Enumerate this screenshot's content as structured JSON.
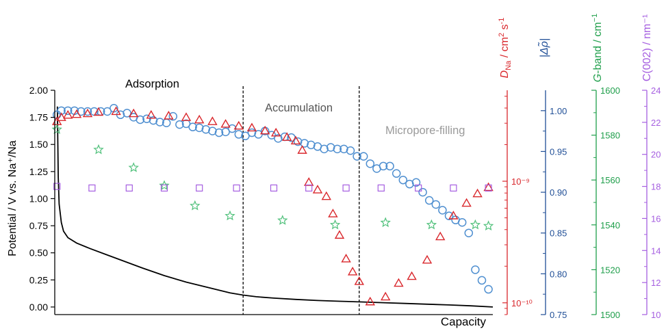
{
  "chart_data": {
    "type": "scatter",
    "title": "",
    "xlabel": "Capacity",
    "ylabel": "Potential / V vs. Na⁺/Na",
    "xlim": [
      0,
      100
    ],
    "ylim": [
      -0.07,
      2.0
    ],
    "left_axis": {
      "ticks": [
        0.0,
        0.25,
        0.5,
        0.75,
        1.0,
        1.25,
        1.5,
        1.75,
        2.0
      ],
      "tick_labels": [
        "0.00",
        "0.25",
        "0.50",
        "0.75",
        "1.00",
        "1.25",
        "1.50",
        "1.75",
        "2.00"
      ]
    },
    "right_axes": [
      {
        "id": "dna",
        "label_main": "D",
        "label_sub": "Na",
        "label_rest": " / cm",
        "label_sup1": "2",
        "label_rest2": " s",
        "label_sup2": "-1",
        "color": "#d9262b",
        "scale": "log",
        "range": [
          8e-11,
          5.6e-09
        ],
        "ticks": [
          1e-10,
          1e-09
        ],
        "tick_labels": [
          "10⁻¹⁰",
          "10⁻⁹"
        ]
      },
      {
        "id": "drho",
        "label": "|Δρ̃|",
        "color": "#1f4e96",
        "scale": "linear",
        "range": [
          0.75,
          1.025
        ],
        "ticks": [
          0.75,
          0.8,
          0.85,
          0.9,
          0.95,
          1.0
        ],
        "tick_labels": [
          "0.75",
          "0.80",
          "0.85",
          "0.90",
          "0.95",
          "1.00"
        ]
      },
      {
        "id": "gband",
        "label_main": "G",
        "label_rest": "-band / cm",
        "label_sup": "−1",
        "color": "#1e9e4a",
        "scale": "linear",
        "range": [
          1500,
          1600
        ],
        "ticks": [
          1500,
          1520,
          1540,
          1560,
          1580,
          1600
        ],
        "tick_labels": [
          "1500",
          "1520",
          "1540",
          "1560",
          "1580",
          "1600"
        ]
      },
      {
        "id": "c002",
        "label": "C(002) / nm⁻¹",
        "color": "#a55ee0",
        "scale": "linear",
        "range": [
          10,
          24
        ],
        "ticks": [
          10,
          12,
          14,
          16,
          18,
          20,
          22,
          24
        ],
        "tick_labels": [
          "10",
          "12",
          "14",
          "16",
          "18",
          "20",
          "22",
          "24"
        ]
      }
    ],
    "regions": [
      {
        "label": "Adsorption",
        "color": "#000000",
        "x": 0
      },
      {
        "label": "Accumulation",
        "color": "#555555",
        "x": 43
      },
      {
        "label": "Micropore-filling",
        "color": "#9a9a9a",
        "x": 69.5
      }
    ],
    "dividers_x": [
      43,
      69.5
    ],
    "series": [
      {
        "axis": "left",
        "color": "#000000",
        "marker": "line",
        "x": [
          0.6,
          0.7,
          0.8,
          1,
          1.5,
          2,
          3,
          5,
          8,
          12,
          16,
          20,
          25,
          30,
          35,
          40,
          43,
          46,
          50,
          55,
          60,
          65,
          70,
          75,
          80,
          85,
          90,
          95,
          100
        ],
        "y": [
          1.85,
          1.5,
          1.2,
          0.95,
          0.78,
          0.7,
          0.64,
          0.59,
          0.54,
          0.48,
          0.42,
          0.36,
          0.29,
          0.23,
          0.18,
          0.13,
          0.11,
          0.095,
          0.082,
          0.07,
          0.06,
          0.053,
          0.047,
          0.04,
          0.033,
          0.026,
          0.019,
          0.011,
          0.0
        ]
      },
      {
        "axis": "drho",
        "color": "#4f8fd0",
        "marker": "circle",
        "x": [
          0.5,
          1.5,
          3,
          4.5,
          6,
          7.5,
          9,
          10.5,
          12,
          13.5,
          15,
          16.5,
          18,
          19.5,
          21,
          22.5,
          24,
          25.5,
          27,
          28.5,
          30,
          31.5,
          33,
          34.5,
          36,
          37.5,
          39,
          40.5,
          42,
          43.5,
          45,
          46.5,
          48,
          49.5,
          51,
          52.5,
          54,
          55.5,
          57,
          58.5,
          60,
          61.5,
          63,
          64.5,
          66,
          67.5,
          69,
          70.5,
          72,
          73.5,
          75,
          76.5,
          78,
          79.5,
          81,
          82.5,
          84,
          85.5,
          87,
          88.5,
          90,
          91.5,
          93,
          94.5,
          96,
          97.5,
          99
        ],
        "y": [
          0.995,
          1.0,
          1.0,
          1.0,
          0.999,
          0.999,
          0.999,
          0.999,
          0.999,
          1.003,
          0.995,
          0.997,
          0.992,
          0.989,
          0.99,
          0.988,
          0.986,
          0.985,
          0.993,
          0.983,
          0.984,
          0.98,
          0.979,
          0.977,
          0.975,
          0.973,
          0.974,
          0.978,
          0.971,
          0.969,
          0.973,
          0.971,
          0.975,
          0.97,
          0.966,
          0.968,
          0.967,
          0.962,
          0.96,
          0.958,
          0.956,
          0.953,
          0.955,
          0.953,
          0.953,
          0.951,
          0.944,
          0.944,
          0.935,
          0.929,
          0.932,
          0.932,
          0.923,
          0.915,
          0.91,
          0.912,
          0.9,
          0.89,
          0.885,
          0.878,
          0.871,
          0.866,
          0.863,
          0.85,
          0.805,
          0.792,
          0.781
        ]
      },
      {
        "axis": "dna",
        "color": "#d9262b",
        "marker": "triangle",
        "x": [
          0.5,
          1.5,
          3,
          5,
          7.5,
          10,
          14,
          18,
          22,
          26,
          30,
          33,
          36,
          39,
          42,
          45,
          48,
          50.5,
          53,
          55,
          56.5,
          58,
          60,
          62,
          63.5,
          65,
          66.5,
          68,
          69.5,
          72,
          75.5,
          78.5,
          81.5,
          85,
          88,
          91,
          94,
          96.5,
          99
        ],
        "y": [
          3.1e-09,
          3.35e-09,
          3.5e-09,
          3.55e-09,
          3.6e-09,
          3.7e-09,
          3.75e-09,
          3.6e-09,
          3.5e-09,
          3.45e-09,
          3.35e-09,
          3.2e-09,
          3.1e-09,
          2.95e-09,
          2.85e-09,
          2.75e-09,
          2.6e-09,
          2.5e-09,
          2.3e-09,
          2.15e-09,
          1.8e-09,
          9.8e-10,
          8.5e-10,
          7.5e-10,
          5.4e-10,
          3.6e-10,
          2.3e-10,
          1.8e-10,
          1.5e-10,
          1.02e-10,
          1.12e-10,
          1.45e-10,
          1.65e-10,
          2.25e-10,
          3.5e-10,
          5.2e-10,
          6.6e-10,
          7.9e-10,
          8.9e-10
        ]
      },
      {
        "axis": "gband",
        "color": "#4fc07a",
        "marker": "star",
        "x": [
          0.5,
          10,
          18,
          25,
          32,
          40,
          52,
          64,
          75.5,
          86,
          96,
          99
        ],
        "y": [
          1582.5,
          1573.5,
          1565.5,
          1557.5,
          1548.5,
          1544,
          1542,
          1540,
          1541,
          1540,
          1540,
          1539.5
        ]
      },
      {
        "axis": "c002",
        "color": "#a55ee0",
        "marker": "square",
        "x": [
          0.5,
          8.5,
          17,
          25,
          33,
          41.5,
          50,
          58,
          66.5,
          74.5,
          83,
          91,
          99
        ],
        "y": [
          18.0,
          17.9,
          17.9,
          17.9,
          17.9,
          17.9,
          17.9,
          17.9,
          17.9,
          17.9,
          17.9,
          17.9,
          17.9
        ]
      }
    ]
  }
}
